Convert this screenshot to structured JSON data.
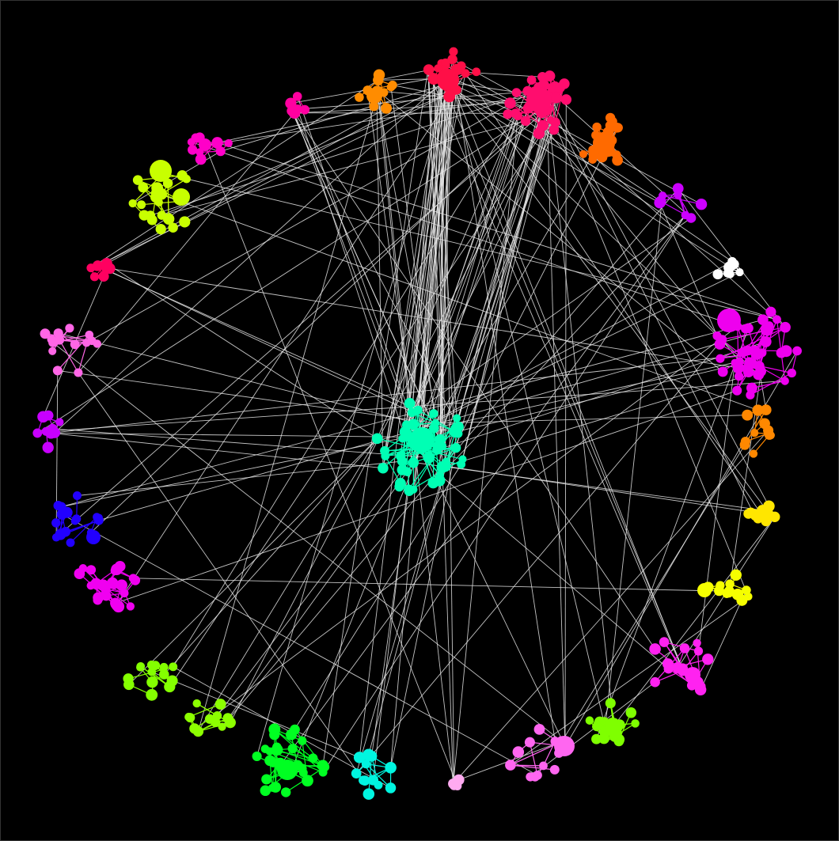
{
  "graph": {
    "background": "#000000",
    "edge_color": "#e6e6e6",
    "clusters": [
      {
        "id": "c-red-top",
        "color": "#ff0f47"
      },
      {
        "id": "c-crimson-top",
        "color": "#ff0d6e"
      },
      {
        "id": "c-orange-top",
        "color": "#ff8c00"
      },
      {
        "id": "c-orange-right",
        "color": "#ff6a00"
      },
      {
        "id": "c-pink-topleft",
        "color": "#ff00a0"
      },
      {
        "id": "c-magenta-upper-left",
        "color": "#ff00c8"
      },
      {
        "id": "c-lime-upper-left",
        "color": "#c8ff00"
      },
      {
        "id": "c-red-left",
        "color": "#ff0060"
      },
      {
        "id": "c-pink-left",
        "color": "#ff66e6"
      },
      {
        "id": "c-purple-left",
        "color": "#c800ff"
      },
      {
        "id": "c-blue-left",
        "color": "#2200ff"
      },
      {
        "id": "c-magenta-lower-left",
        "color": "#f000f0"
      },
      {
        "id": "c-lime-bottom-left",
        "color": "#84ff00"
      },
      {
        "id": "c-lime-bottom",
        "color": "#8cff00"
      },
      {
        "id": "c-green-bottom",
        "color": "#00ff22"
      },
      {
        "id": "c-cyan-bottom",
        "color": "#00f5e0"
      },
      {
        "id": "c-lightpink-bottom",
        "color": "#ffaaf0"
      },
      {
        "id": "c-pink-bottom",
        "color": "#ff66f0"
      },
      {
        "id": "c-lime-bottom-right",
        "color": "#7fff00"
      },
      {
        "id": "c-magenta-bottom-right",
        "color": "#ff22f0"
      },
      {
        "id": "c-yellow-right",
        "color": "#f5ff00"
      },
      {
        "id": "c-yellow-right-2",
        "color": "#ffe600"
      },
      {
        "id": "c-orange-right-2",
        "color": "#ff8800"
      },
      {
        "id": "c-magenta-right",
        "color": "#ee00ee"
      },
      {
        "id": "c-white-right",
        "color": "#ffffff"
      },
      {
        "id": "c-purple-right",
        "color": "#cc00ff"
      },
      {
        "id": "c-teal-center",
        "color": "#00ffb4"
      }
    ]
  }
}
